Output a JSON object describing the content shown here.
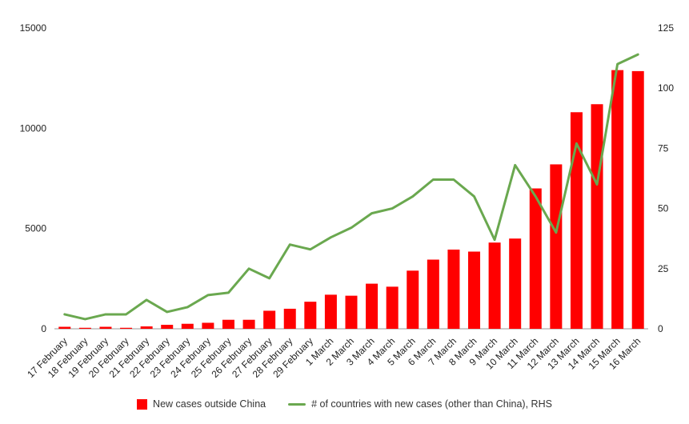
{
  "chart_data": {
    "type": "combo",
    "categories": [
      "17 February",
      "18 February",
      "19 February",
      "20 February",
      "21 February",
      "22 February",
      "23 February",
      "24 February",
      "25 February",
      "26 February",
      "27 February",
      "28 February",
      "29 February",
      "1 March",
      "2 March",
      "3 March",
      "4 March",
      "5 March",
      "6 March",
      "7 March",
      "8 March",
      "9 March",
      "10 March",
      "11 March",
      "12 March",
      "13 March",
      "14 March",
      "15 March",
      "16 March"
    ],
    "series": [
      {
        "name": "New cases outside China",
        "type": "bar",
        "axis": "left",
        "color": "#ff0000",
        "values": [
          100,
          50,
          100,
          50,
          120,
          200,
          250,
          300,
          450,
          450,
          900,
          1000,
          1350,
          1700,
          1650,
          2250,
          2100,
          2900,
          3450,
          3950,
          3850,
          4300,
          4500,
          7000,
          8200,
          10800,
          11200,
          12900,
          12850
        ]
      },
      {
        "name": "# of countries with new cases (other than China), RHS",
        "type": "line",
        "axis": "right",
        "color": "#6aa84f",
        "values": [
          6,
          4,
          6,
          6,
          12,
          7,
          9,
          14,
          15,
          25,
          21,
          35,
          33,
          38,
          42,
          48,
          50,
          55,
          62,
          62,
          55,
          37,
          68,
          55,
          40,
          77,
          60,
          110,
          114
        ]
      }
    ],
    "left_axis": {
      "min": 0,
      "max": 15000,
      "ticks": [
        0,
        5000,
        10000,
        15000
      ]
    },
    "right_axis": {
      "min": 0,
      "max": 125,
      "ticks": [
        0,
        25,
        50,
        75,
        100,
        125
      ]
    },
    "title": "",
    "xlabel": "",
    "ylabel": "",
    "grid": false,
    "legend_position": "bottom"
  },
  "colors": {
    "bar": "#ff0000",
    "line": "#6aa84f"
  }
}
